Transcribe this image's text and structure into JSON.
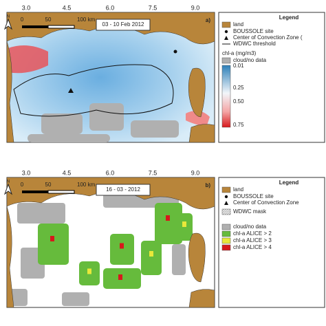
{
  "panels": [
    {
      "ticks": [
        "3.0",
        "4.5",
        "6.0",
        "7.5",
        "9.0"
      ],
      "scale": [
        "0",
        "50",
        "100 km"
      ],
      "north": "N",
      "date": "03 - 10 Feb 2012",
      "letter": "a)",
      "legend": {
        "title": "Legend",
        "items": [
          "land",
          "BOUSSOLE site",
          "Center of Convection Zone (",
          "WDWC threshold",
          "chl-a (mg/m3)",
          "cloud/no data"
        ],
        "colorbar_labels": [
          "0.01",
          "0.25",
          "0.50",
          "0.75"
        ]
      }
    },
    {
      "ticks": [
        "3.0",
        "4.5",
        "6.0",
        "7.5",
        "9.0"
      ],
      "scale": [
        "0",
        "50",
        "100 km"
      ],
      "north": "N",
      "date": "16 - 03 - 2012",
      "letter": "b)",
      "legend": {
        "title": "Legend",
        "items": [
          "land",
          "BOUSSOLE site",
          "Center of Convection Zone",
          "WDWC mask",
          "cloud/no data",
          "chl-a ALICE > 2",
          "chl-a ALICE > 3",
          "chl-a ALICE > 4"
        ]
      }
    }
  ]
}
